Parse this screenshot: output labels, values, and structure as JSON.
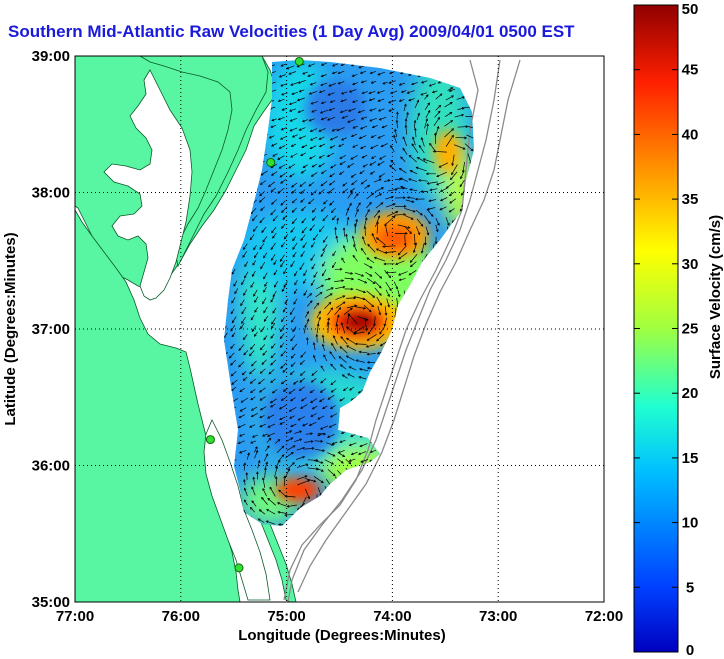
{
  "chart_data": {
    "type": "heatmap",
    "title": "Southern Mid-Atlantic Raw Velocities (1 Day Avg) 2009/04/01 0500 EST",
    "xlabel": "Longitude (Degrees:Minutes)",
    "ylabel": "Latitude (Degrees:Minutes)",
    "xlim": [
      -77,
      -72
    ],
    "ylim": [
      35,
      39
    ],
    "x_ticks": [
      -77,
      -76,
      -75,
      -74,
      -73,
      -72
    ],
    "y_ticks": [
      35,
      36,
      37,
      38,
      39
    ],
    "x_tick_labels": [
      "77:00",
      "76:00",
      "75:00",
      "74:00",
      "73:00",
      "72:00"
    ],
    "y_tick_labels": [
      "35:00",
      "36:00",
      "37:00",
      "38:00",
      "39:00"
    ],
    "grid": true,
    "colorbar": {
      "label": "Surface Velocity (cm/s)",
      "min": 0,
      "max": 50,
      "ticks": [
        0,
        5,
        10,
        15,
        20,
        25,
        30,
        35,
        40,
        45,
        50
      ],
      "tick_labels": [
        "0",
        "5",
        "10",
        "15",
        "20",
        "25",
        "30",
        "35",
        "40",
        "45",
        "50"
      ],
      "colormap": "jet"
    },
    "stations": [
      {
        "lon": -74.88,
        "lat": 38.96
      },
      {
        "lon": -75.15,
        "lat": 38.22
      },
      {
        "lon": -75.72,
        "lat": 36.19
      },
      {
        "lon": -75.45,
        "lat": 35.25
      }
    ],
    "velocity_features": [
      {
        "lon": -74.42,
        "lat": 37.03,
        "speed_cm_s": 46
      },
      {
        "lon": -74.12,
        "lat": 37.68,
        "speed_cm_s": 33
      },
      {
        "lon": -74.95,
        "lat": 35.78,
        "speed_cm_s": 42
      },
      {
        "lon": -73.62,
        "lat": 38.45,
        "speed_cm_s": 24
      },
      {
        "lon": -74.52,
        "lat": 38.52,
        "speed_cm_s": 6
      },
      {
        "lon": -75.05,
        "lat": 36.55,
        "speed_cm_s": 8
      }
    ]
  },
  "colors": {
    "land": "#58f5a3",
    "title": "#1a1adc",
    "station": "#33dd33"
  }
}
